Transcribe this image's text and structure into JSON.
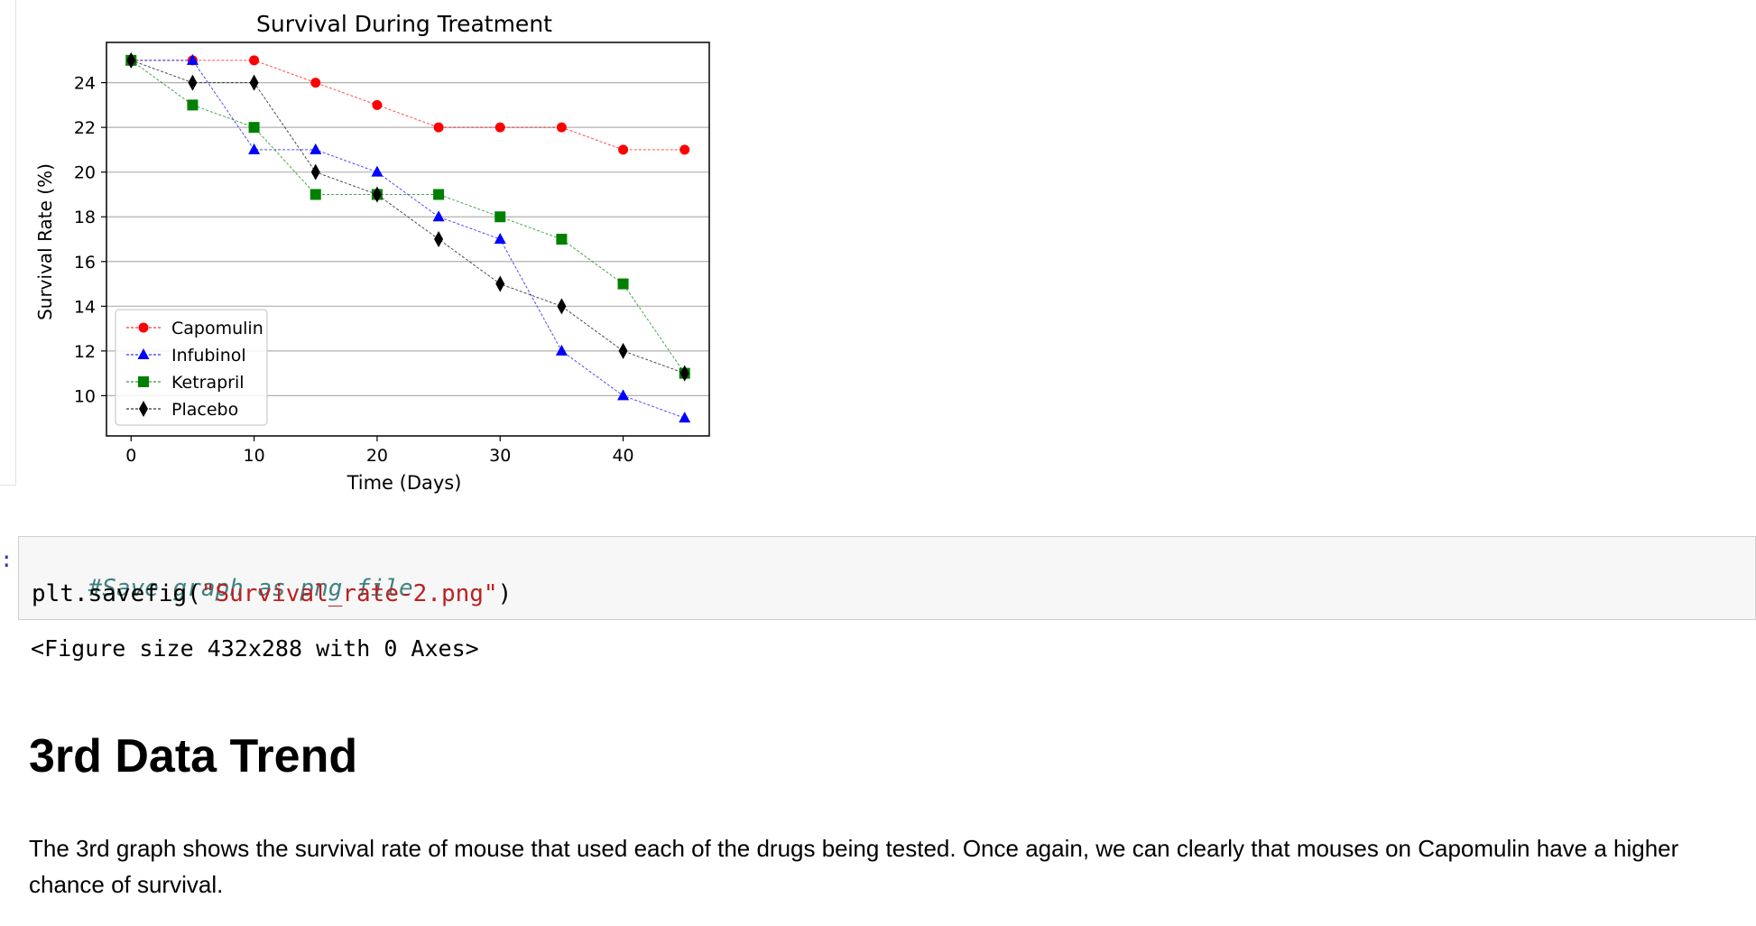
{
  "chart_data": {
    "type": "line",
    "title": "Survival During Treatment",
    "xlabel": "Time (Days)",
    "ylabel": "Survival Rate (%)",
    "xlim": [
      -2,
      47
    ],
    "ylim": [
      8.2,
      25.8
    ],
    "xticks": [
      0,
      10,
      20,
      30,
      40
    ],
    "yticks": [
      10,
      12,
      14,
      16,
      18,
      20,
      22,
      24
    ],
    "grid": "horizontal",
    "legend_position": "lower-left",
    "x": [
      0,
      5,
      10,
      15,
      20,
      25,
      30,
      35,
      40,
      45
    ],
    "series": [
      {
        "name": "Capomulin",
        "color": "#ff0000",
        "marker": "circle",
        "values": [
          25,
          25,
          25,
          24,
          23,
          22,
          22,
          22,
          21,
          21
        ]
      },
      {
        "name": "Infubinol",
        "color": "#0000ff",
        "marker": "triangle",
        "values": [
          25,
          25,
          21,
          21,
          20,
          18,
          17,
          12,
          10,
          9
        ]
      },
      {
        "name": "Ketrapril",
        "color": "#008000",
        "marker": "square",
        "values": [
          25,
          23,
          22,
          19,
          19,
          19,
          18,
          17,
          15,
          11
        ]
      },
      {
        "name": "Placebo",
        "color": "#000000",
        "marker": "diamond",
        "values": [
          25,
          24,
          24,
          20,
          19,
          17,
          15,
          14,
          12,
          11
        ]
      }
    ]
  },
  "code_cell": {
    "prompt": ":",
    "comment": "#Save graph as png file",
    "code_prefix": "plt.savefig(",
    "code_string": "\"Survival_rate-2.png\"",
    "code_suffix": ")"
  },
  "output": {
    "text": "<Figure size 432x288 with 0 Axes>"
  },
  "markdown": {
    "heading": "3rd Data Trend",
    "paragraph": "The 3rd graph shows the survival rate of mouse that used each of the drugs being tested. Once again, we can clearly that mouses on Capomulin have a higher chance of survival."
  }
}
